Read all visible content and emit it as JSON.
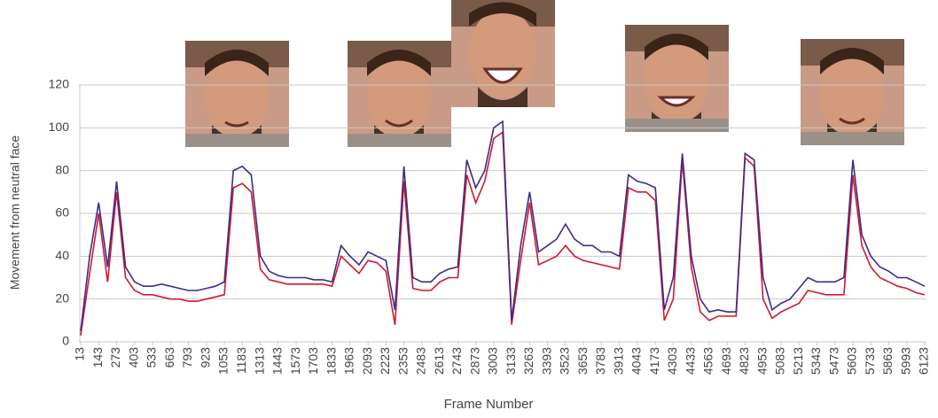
{
  "chart_data": {
    "type": "line",
    "x_label": "Frame Number",
    "y_label": "Movement from neutral face",
    "xlim": [
      13,
      6123
    ],
    "ylim": [
      0,
      120
    ],
    "yticks": [
      0,
      20,
      40,
      60,
      80,
      100,
      120
    ],
    "xticks": [
      13,
      143,
      273,
      403,
      533,
      663,
      793,
      923,
      1053,
      1183,
      1313,
      1443,
      1573,
      1703,
      1833,
      1963,
      2093,
      2223,
      2353,
      2483,
      2613,
      2743,
      2873,
      3003,
      3133,
      3263,
      3393,
      3523,
      3653,
      3783,
      3913,
      4043,
      4173,
      4303,
      4433,
      4563,
      4693,
      4823,
      4953,
      5083,
      5213,
      5343,
      5473,
      5603,
      5733,
      5863,
      5993,
      6123
    ],
    "grid": true,
    "x": [
      13,
      78,
      143,
      208,
      273,
      338,
      403,
      468,
      533,
      598,
      663,
      728,
      793,
      858,
      923,
      988,
      1053,
      1118,
      1183,
      1248,
      1313,
      1378,
      1443,
      1508,
      1573,
      1638,
      1703,
      1768,
      1833,
      1898,
      1963,
      2028,
      2093,
      2158,
      2223,
      2288,
      2353,
      2418,
      2483,
      2548,
      2613,
      2678,
      2743,
      2808,
      2873,
      2938,
      3003,
      3068,
      3133,
      3198,
      3263,
      3328,
      3393,
      3458,
      3523,
      3588,
      3653,
      3718,
      3783,
      3848,
      3913,
      3978,
      4043,
      4108,
      4173,
      4238,
      4303,
      4368,
      4433,
      4498,
      4563,
      4628,
      4693,
      4758,
      4823,
      4888,
      4953,
      5018,
      5083,
      5148,
      5213,
      5278,
      5343,
      5408,
      5473,
      5538,
      5603,
      5668,
      5733,
      5798,
      5863,
      5928,
      5993,
      6058,
      6123
    ],
    "series": [
      {
        "color": "#d3182c",
        "values": [
          3,
          32,
          60,
          28,
          70,
          30,
          24,
          22,
          22,
          21,
          20,
          20,
          19,
          19,
          20,
          21,
          22,
          72,
          74,
          70,
          34,
          29,
          28,
          27,
          27,
          27,
          27,
          27,
          26,
          40,
          36,
          32,
          38,
          37,
          33,
          8,
          75,
          25,
          24,
          24,
          28,
          30,
          30,
          78,
          65,
          75,
          95,
          98,
          8,
          38,
          65,
          36,
          38,
          40,
          45,
          40,
          38,
          37,
          36,
          35,
          34,
          72,
          70,
          70,
          66,
          10,
          20,
          85,
          35,
          14,
          10,
          12,
          12,
          12,
          86,
          82,
          20,
          11,
          14,
          16,
          18,
          24,
          23,
          22,
          22,
          22,
          78,
          45,
          35,
          30,
          28,
          26,
          25,
          23,
          22
        ]
      },
      {
        "color": "#3d2a8a",
        "values": [
          5,
          40,
          65,
          35,
          75,
          35,
          28,
          26,
          26,
          27,
          26,
          25,
          24,
          24,
          25,
          26,
          28,
          80,
          82,
          78,
          40,
          33,
          31,
          30,
          30,
          30,
          29,
          29,
          28,
          45,
          40,
          36,
          42,
          40,
          38,
          15,
          82,
          30,
          28,
          28,
          32,
          34,
          35,
          85,
          72,
          80,
          100,
          103,
          10,
          45,
          70,
          42,
          45,
          48,
          55,
          48,
          45,
          45,
          42,
          42,
          40,
          78,
          75,
          74,
          72,
          15,
          30,
          88,
          40,
          20,
          14,
          15,
          14,
          14,
          88,
          85,
          30,
          15,
          18,
          20,
          25,
          30,
          28,
          28,
          28,
          30,
          85,
          50,
          40,
          35,
          33,
          30,
          30,
          28,
          26
        ]
      }
    ]
  }
}
